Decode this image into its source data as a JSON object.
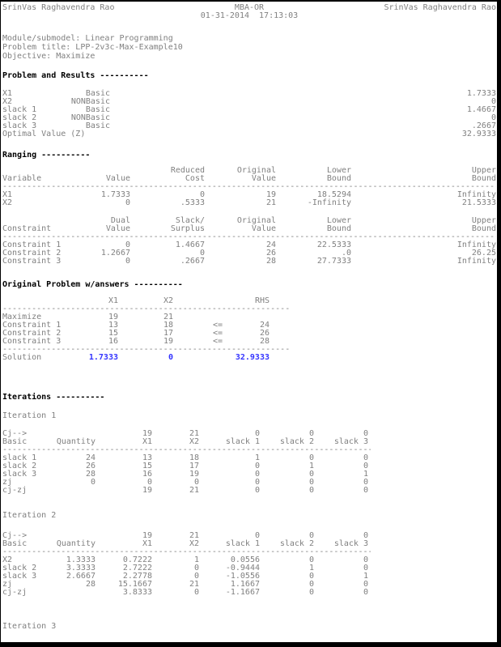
{
  "colors": {
    "text_gray": "#808080",
    "heading_black": "#000000",
    "solution_blue": "#3333ff",
    "page_background": "#ffffff",
    "frame_black": "#000000"
  },
  "header": {
    "left": "SrinVas Raghavendra Rao",
    "center_line1": "MBA-OR",
    "center_line2": "01-31-2014  17:13:03",
    "right": "SrinVas Raghavendra Rao"
  },
  "info": {
    "module": "Module/submodel: Linear Programming",
    "title": "Problem title: LPP-2v3c-Max-Example10",
    "objective": "Objective: Maximize"
  },
  "dashes": {
    "full": "--------------------------------------------------------------------------------------------------------------",
    "medium": "--------------------------------------------------------------",
    "iteration": "------------------------------------------------------------------------------"
  },
  "sections": {
    "problem_results": {
      "heading": "Problem and Results ----------",
      "rows": [
        [
          "X1",
          "Basic",
          "1.7333"
        ],
        [
          "X2",
          "NONBasic",
          "0"
        ],
        [
          "slack 1",
          "Basic",
          "1.4667"
        ],
        [
          "slack 2",
          "NONBasic",
          "0"
        ],
        [
          "slack 3",
          "Basic",
          ".2667"
        ],
        [
          "Optimal Value (Z)",
          "",
          "32.9333"
        ]
      ]
    },
    "ranging": {
      "heading": "Ranging ----------",
      "variables": {
        "header_rows": [
          [
            "",
            "",
            "Reduced",
            "Original",
            "Lower",
            "Upper"
          ],
          [
            "Variable",
            "Value",
            "Cost",
            "Value",
            "Bound",
            "Bound"
          ]
        ],
        "rows": [
          [
            "X1",
            "1.7333",
            "0",
            "19",
            "18.5294",
            "Infinity"
          ],
          [
            "X2",
            "0",
            ".5333",
            "21",
            "-Infinity",
            "21.5333"
          ]
        ]
      },
      "constraints": {
        "header_rows": [
          [
            "",
            "Dual",
            "Slack/",
            "Original",
            "Lower",
            "Upper"
          ],
          [
            "Constraint",
            "Value",
            "Surplus",
            "Value",
            "Bound",
            "Bound"
          ]
        ],
        "rows": [
          [
            "Constraint 1",
            "0",
            "1.4667",
            "24",
            "22.5333",
            "Infinity"
          ],
          [
            "Constraint 2",
            "1.2667",
            "0",
            "26",
            ".0",
            "26.25"
          ],
          [
            "Constraint 3",
            "0",
            ".2667",
            "28",
            "27.7333",
            "Infinity"
          ]
        ]
      }
    },
    "original_problem": {
      "heading": "Original Problem w/answers ----------",
      "header_rows": [
        [
          "",
          "X1",
          "X2",
          "",
          "RHS"
        ]
      ],
      "rows": [
        [
          "Maximize",
          "19",
          "21",
          "",
          ""
        ],
        [
          "Constraint 1",
          "13",
          "18",
          "<=",
          "24"
        ],
        [
          "Constraint 2",
          "15",
          "17",
          "<=",
          "26"
        ],
        [
          "Constraint 3",
          "16",
          "19",
          "<=",
          "28"
        ]
      ],
      "solution_rows": [
        [
          "Solution",
          "1.7333",
          "0",
          "",
          "32.9333"
        ]
      ]
    },
    "iterations": {
      "heading": "Iterations ----------",
      "tables": [
        {
          "title": "Iteration 1",
          "header_rows": [
            [
              "Cj-->",
              "",
              "19",
              "21",
              "0",
              "0",
              "0"
            ],
            [
              "Basic",
              "Quantity",
              "X1",
              "X2",
              "slack 1",
              "slack 2",
              "slack 3"
            ]
          ],
          "rows": [
            [
              "slack 1",
              "24",
              "13",
              "18",
              "1",
              "0",
              "0"
            ],
            [
              "slack 2",
              "26",
              "15",
              "17",
              "0",
              "1",
              "0"
            ],
            [
              "slack 3",
              "28",
              "16",
              "19",
              "0",
              "0",
              "1"
            ],
            [
              "zj",
              "0",
              "0",
              "0",
              "0",
              "0",
              "0"
            ],
            [
              "cj-zj",
              "",
              "19",
              "21",
              "0",
              "0",
              "0"
            ]
          ]
        },
        {
          "title": "Iteration 2",
          "header_rows": [
            [
              "Cj-->",
              "",
              "19",
              "21",
              "0",
              "0",
              "0"
            ],
            [
              "Basic",
              "Quantity",
              "X1",
              "X2",
              "slack 1",
              "slack 2",
              "slack 3"
            ]
          ],
          "rows": [
            [
              "X2",
              "1.3333",
              "0.7222",
              "1",
              "0.0556",
              "0",
              "0"
            ],
            [
              "slack 2",
              "3.3333",
              "2.7222",
              "0",
              "-0.9444",
              "1",
              "0"
            ],
            [
              "slack 3",
              "2.6667",
              "2.2778",
              "0",
              "-1.0556",
              "0",
              "1"
            ],
            [
              "zj",
              "28",
              "15.1667",
              "21",
              "1.1667",
              "0",
              "0"
            ],
            [
              "cj-zj",
              "",
              "3.8333",
              "0",
              "-1.1667",
              "0",
              "0"
            ]
          ]
        }
      ],
      "footer": "Iteration 3"
    }
  }
}
